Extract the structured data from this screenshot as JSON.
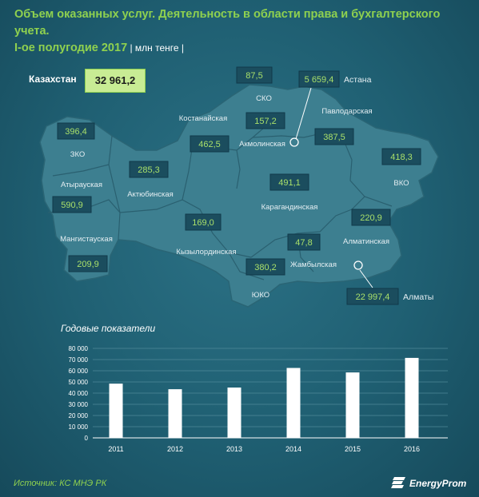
{
  "title": {
    "line1": "Объем оказанных услуг. Деятельность в области права и бухгалтерского учета.",
    "line2": "I-ое полугодие 2017",
    "unit": " | млн тенге |"
  },
  "kazakhstan": {
    "label": "Казахстан",
    "value": "32 961,2"
  },
  "regions": {
    "zko": {
      "name": "ЗКО",
      "value": "396,4"
    },
    "atyrau": {
      "name": "Атырауская",
      "value": "590,9"
    },
    "mangistau": {
      "name": "Мангистауская",
      "value": "209,9"
    },
    "aktobe": {
      "name": "Актюбинская",
      "value": "285,3"
    },
    "kostanay": {
      "name": "Костанайская",
      "value": "462,5"
    },
    "sko": {
      "name": "СКО",
      "value": "87,5"
    },
    "akmola": {
      "name": "Акмолинская",
      "value": "157,2"
    },
    "pavlodar": {
      "name": "Павлодарская",
      "value": "387,5"
    },
    "vko": {
      "name": "ВКО",
      "value": "418,3"
    },
    "karaganda": {
      "name": "Карагандинская",
      "value": "491,1"
    },
    "kyzylorda": {
      "name": "Кызылординская",
      "value": "169,0"
    },
    "zhambyl": {
      "name": "Жамбылская",
      "value": "47,8"
    },
    "almaty_region": {
      "name": "Алматинская",
      "value": "220,9"
    },
    "uko": {
      "name": "ЮКО",
      "value": "380,2"
    }
  },
  "cities": {
    "astana": {
      "name": "Астана",
      "value": "5 659,4"
    },
    "almaty": {
      "name": "Алматы",
      "value": "22 997,4"
    }
  },
  "colors": {
    "accent": "#8fd14f",
    "background": "#1f5f72",
    "map": "#3d7f90"
  },
  "chart_data": {
    "type": "bar",
    "title": "Годовые показатели",
    "categories": [
      "2011",
      "2012",
      "2013",
      "2014",
      "2015",
      "2016"
    ],
    "values": [
      48500,
      43500,
      45000,
      62500,
      58500,
      71500
    ],
    "ylim": [
      0,
      80000
    ],
    "yticks": [
      "0",
      "10 000",
      "20 000",
      "30 000",
      "40 000",
      "50 000",
      "60 000",
      "70 000",
      "80 000"
    ],
    "grid": true,
    "bar_color": "#ffffff"
  },
  "footer": {
    "source": "Источник: КС МНЭ РК",
    "brand": "EnergyProm"
  }
}
